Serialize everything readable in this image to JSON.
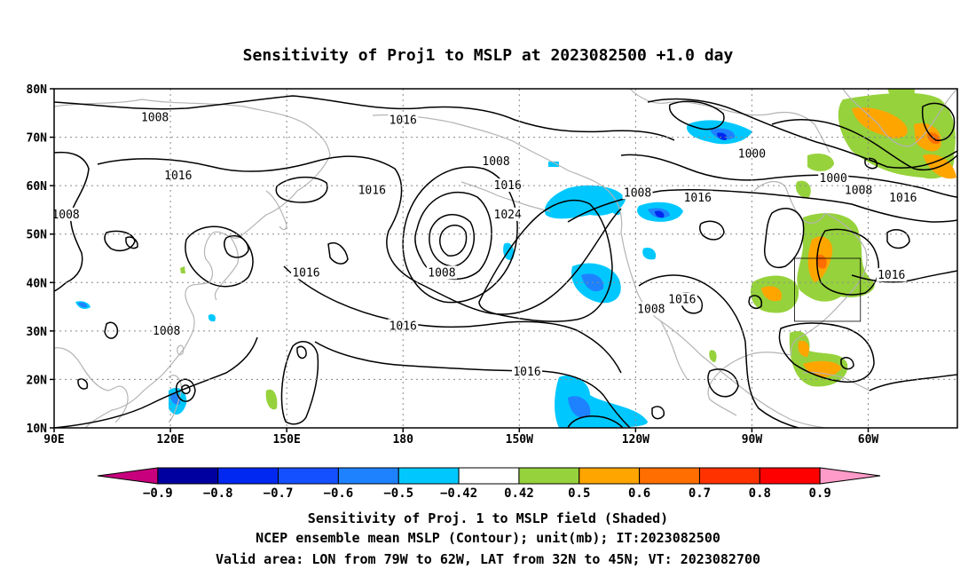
{
  "title": "Sensitivity of Proj1 to MSLP at 2023082500 +1.0 day",
  "map": {
    "lat_labels": [
      "80N",
      "70N",
      "60N",
      "50N",
      "40N",
      "30N",
      "20N",
      "10N"
    ],
    "lon_labels": [
      "90E",
      "120E",
      "150E",
      "180",
      "150W",
      "120W",
      "90W",
      "60W"
    ],
    "grid": "dotted every 30° lon / 10° lat",
    "contour_labels": [
      {
        "text": "1008",
        "lon": 116,
        "lat": 74
      },
      {
        "text": "1016",
        "lon": 180,
        "lat": 73.5
      },
      {
        "text": "1008",
        "lon": -156,
        "lat": 65
      },
      {
        "text": "1000",
        "lon": -90,
        "lat": 66.5
      },
      {
        "text": "1016",
        "lon": 122,
        "lat": 62
      },
      {
        "text": "1016",
        "lon": 172,
        "lat": 59
      },
      {
        "text": "1016",
        "lon": -153,
        "lat": 60
      },
      {
        "text": "1008",
        "lon": -119.5,
        "lat": 58.5
      },
      {
        "text": "1016",
        "lon": -104,
        "lat": 57.5
      },
      {
        "text": "1000",
        "lon": -69,
        "lat": 61.5
      },
      {
        "text": "1008",
        "lon": -62.5,
        "lat": 59
      },
      {
        "text": "1016",
        "lon": -51,
        "lat": 57.5
      },
      {
        "text": "1008",
        "lon": 93,
        "lat": 54
      },
      {
        "text": "1024",
        "lon": -153,
        "lat": 54
      },
      {
        "text": "1008",
        "lon": -170,
        "lat": 42
      },
      {
        "text": "1016",
        "lon": 155,
        "lat": 42
      },
      {
        "text": "1016",
        "lon": -108,
        "lat": 36.5
      },
      {
        "text": "1008",
        "lon": -116,
        "lat": 34.5
      },
      {
        "text": "1016",
        "lon": -54,
        "lat": 41.5
      },
      {
        "text": "1008",
        "lon": 119,
        "lat": 30
      },
      {
        "text": "1016",
        "lon": 180,
        "lat": 31
      },
      {
        "text": "1016",
        "lon": -148,
        "lat": 21.5
      }
    ],
    "valid_box": {
      "lon_min": -79,
      "lon_max": -62,
      "lat_min": 32,
      "lat_max": 45
    }
  },
  "colorbar": {
    "labels": [
      "-0.9",
      "-0.8",
      "-0.7",
      "-0.6",
      "-0.5",
      "-0.42",
      "0.42",
      "0.5",
      "0.6",
      "0.7",
      "0.8",
      "0.9"
    ],
    "colors": {
      "below": "#c8007d",
      "bins": [
        "#0000a0",
        "#0028f0",
        "#1450ff",
        "#1e82ff",
        "#00c8ff",
        "#ffffff",
        "#96d23c",
        "#ffa500",
        "#ff6e00",
        "#ff3200",
        "#ff0000"
      ],
      "above": "#ff9bc8"
    }
  },
  "captions": [
    "Sensitivity of Proj. 1 to MSLP field (Shaded)",
    "NCEP ensemble mean MSLP (Contour); unit(mb); IT:2023082500",
    "Valid area: LON from 79W to 62W, LAT from 32N to 45N; VT: 2023082700"
  ]
}
